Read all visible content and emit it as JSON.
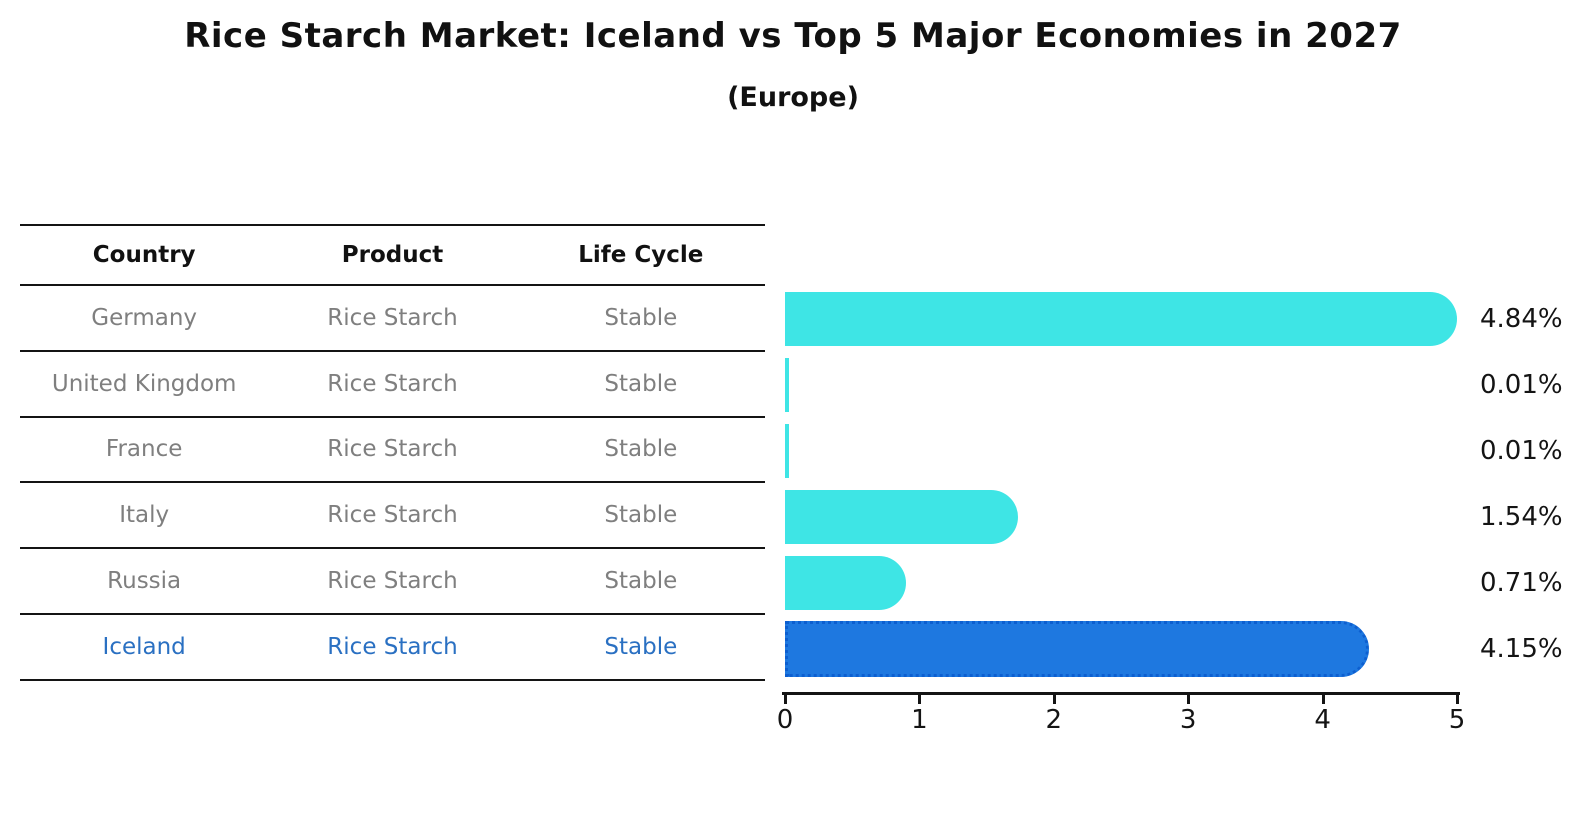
{
  "title": "Rice Starch Market: Iceland vs Top 5 Major Economies in 2027",
  "subtitle": "(Europe)",
  "table": {
    "headers": [
      "Country",
      "Product",
      "Life Cycle"
    ],
    "rows": [
      {
        "country": "Germany",
        "product": "Rice Starch",
        "life_cycle": "Stable",
        "highlighted": false
      },
      {
        "country": "United Kingdom",
        "product": "Rice Starch",
        "life_cycle": "Stable",
        "highlighted": false
      },
      {
        "country": "France",
        "product": "Rice Starch",
        "life_cycle": "Stable",
        "highlighted": false
      },
      {
        "country": "Italy",
        "product": "Rice Starch",
        "life_cycle": "Stable",
        "highlighted": false
      },
      {
        "country": "Russia",
        "product": "Rice Starch",
        "life_cycle": "Stable",
        "highlighted": false
      },
      {
        "country": "Iceland",
        "product": "Rice Starch",
        "life_cycle": "Stable",
        "highlighted": true
      }
    ]
  },
  "chart_data": {
    "type": "bar",
    "orientation": "horizontal",
    "title": "Rice Starch Market: Iceland vs Top 5 Major Economies in 2027",
    "subtitle": "(Europe)",
    "categories": [
      "Germany",
      "United Kingdom",
      "France",
      "Italy",
      "Russia",
      "Iceland"
    ],
    "values": [
      4.84,
      0.01,
      0.01,
      1.54,
      0.71,
      4.15
    ],
    "value_labels": [
      "4.84%",
      "0.01%",
      "0.01%",
      "1.54%",
      "0.71%",
      "4.15%"
    ],
    "xlabel": "",
    "ylabel": "",
    "xlim": [
      0,
      5
    ],
    "xticks": [
      "0",
      "1",
      "2",
      "3",
      "4",
      "5"
    ],
    "grid": false,
    "legend": "none",
    "highlight_index": 5
  },
  "colors": {
    "bar_default": "#3EE5E5",
    "bar_highlight": "#1E78E0",
    "bar_highlight_border": "#0D5FD0",
    "highlight_text": "#2A70C2",
    "muted_text": "#7F7F7F",
    "text": "#141414"
  }
}
